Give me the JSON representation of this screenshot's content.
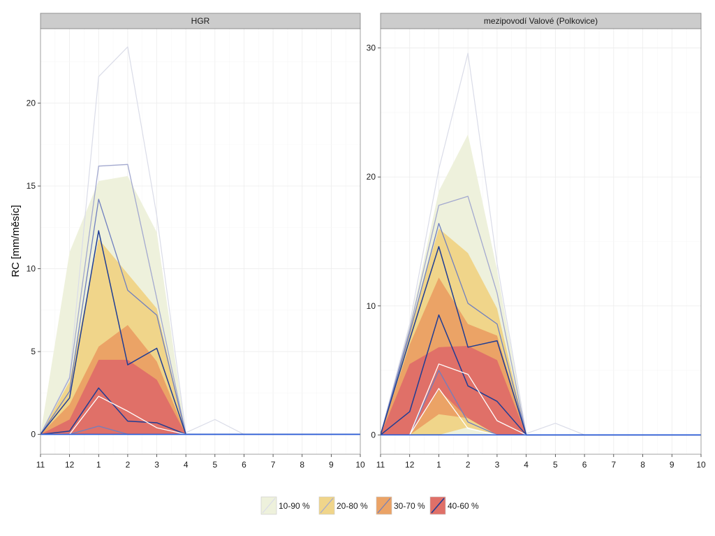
{
  "chart_data": {
    "type": "area",
    "ylabel": "RC [mm/měsíc]",
    "xlabel": "",
    "x_ticks": [
      "11",
      "12",
      "1",
      "2",
      "3",
      "4",
      "5",
      "6",
      "7",
      "8",
      "9",
      "10"
    ],
    "colors": {
      "band_10_90": "#eef1dc",
      "band_20_80": "#f0d58a",
      "band_30_70": "#eba366",
      "band_40_60": "#e07068",
      "line_10_90": "#dadce8",
      "line_20_80": "#a3a9cf",
      "line_30_70": "#6f7fbf",
      "line_40_60": "#1f3d94",
      "median": "#2a5bd7"
    },
    "legend": [
      {
        "label": "10-90 %",
        "fill": "#eef1dc",
        "line": "#dadce8"
      },
      {
        "label": "20-80 %",
        "fill": "#f0d58a",
        "line": "#a3a9cf"
      },
      {
        "label": "30-70 %",
        "fill": "#eba366",
        "line": "#6f7fbf"
      },
      {
        "label": "40-60 %",
        "fill": "#e07068",
        "line": "#1f3d94"
      }
    ],
    "panels": [
      {
        "title": "HGR",
        "ylim": [
          -1.2,
          24.5
        ],
        "yticks": [
          0,
          5,
          10,
          15,
          20
        ],
        "bands": [
          {
            "name": "10-90 %",
            "lower": [
              0,
              0,
              0,
              0,
              0,
              0,
              0,
              0,
              0,
              0,
              0,
              0
            ],
            "upper": [
              0,
              11,
              15.3,
              15.6,
              12.2,
              0,
              0,
              0,
              0,
              0,
              0,
              0
            ]
          },
          {
            "name": "20-80 %",
            "lower": [
              0,
              0,
              0,
              0,
              0,
              0,
              0,
              0,
              0,
              0,
              0,
              0
            ],
            "upper": [
              0,
              3.2,
              11.8,
              9.7,
              7.6,
              0,
              0,
              0,
              0,
              0,
              0,
              0
            ]
          },
          {
            "name": "30-70 %",
            "lower": [
              0,
              0,
              0,
              0,
              0,
              0,
              0,
              0,
              0,
              0,
              0,
              0
            ],
            "upper": [
              0,
              1.8,
              5.3,
              6.6,
              4.4,
              0,
              0,
              0,
              0,
              0,
              0,
              0
            ]
          },
          {
            "name": "40-60 %",
            "lower": [
              0,
              0,
              0,
              0,
              0,
              0,
              0,
              0,
              0,
              0,
              0,
              0
            ],
            "upper": [
              0,
              0.9,
              4.5,
              4.5,
              3.3,
              0,
              0,
              0,
              0,
              0,
              0,
              0
            ]
          }
        ],
        "lines": [
          {
            "band": "10-90 %",
            "values": [
              0,
              3.5,
              21.6,
              23.4,
              13.2,
              0.1,
              0.9,
              0,
              0,
              0,
              0,
              0
            ]
          },
          {
            "band": "20-80 %",
            "values": [
              0,
              3.4,
              16.2,
              16.3,
              8.2,
              0,
              0,
              0,
              0,
              0,
              0,
              0
            ]
          },
          {
            "band": "30-70 %",
            "values": [
              0,
              2.6,
              14.2,
              8.7,
              7.2,
              0,
              0,
              0,
              0,
              0,
              0,
              0
            ]
          },
          {
            "band": "40-60 %",
            "values": [
              0,
              2.2,
              12.3,
              4.2,
              5.2,
              0,
              0,
              0,
              0,
              0,
              0,
              0
            ]
          },
          {
            "band": "40-60 %",
            "values": [
              0,
              0.2,
              2.8,
              0.8,
              0.7,
              0,
              0,
              0,
              0,
              0,
              0,
              0
            ]
          },
          {
            "band": "30-70 %",
            "values": [
              0,
              0,
              0.5,
              0,
              0,
              0,
              0,
              0,
              0,
              0,
              0,
              0
            ]
          },
          {
            "band": "white",
            "values": [
              0,
              0,
              2.3,
              1.4,
              0.4,
              0,
              0,
              0,
              0,
              0,
              0,
              0
            ]
          }
        ]
      },
      {
        "title": "mezipovodí Valové (Polkovice)",
        "ylim": [
          -1.5,
          31.5
        ],
        "yticks": [
          0,
          10,
          20,
          30
        ],
        "bands": [
          {
            "name": "10-90 %",
            "lower": [
              0,
              0,
              0,
              0,
              0,
              0,
              0,
              0,
              0,
              0,
              0,
              0
            ],
            "upper": [
              0,
              8.5,
              18.9,
              23.3,
              12.8,
              0,
              0,
              0,
              0,
              0,
              0,
              0
            ]
          },
          {
            "name": "20-80 %",
            "lower": [
              0,
              0,
              0,
              0.6,
              0,
              0,
              0,
              0,
              0,
              0,
              0,
              0
            ],
            "upper": [
              0,
              8.2,
              16.0,
              14.1,
              9.8,
              0,
              0,
              0,
              0,
              0,
              0,
              0
            ]
          },
          {
            "name": "30-70 %",
            "lower": [
              0,
              0,
              1.6,
              1.3,
              0,
              0,
              0,
              0,
              0,
              0,
              0,
              0
            ],
            "upper": [
              0,
              7.0,
              12.2,
              8.6,
              7.7,
              0,
              0,
              0,
              0,
              0,
              0,
              0
            ]
          },
          {
            "name": "40-60 %",
            "lower": [
              0,
              0,
              3.5,
              1.3,
              0,
              0,
              0,
              0,
              0,
              0,
              0,
              0
            ],
            "upper": [
              0,
              5.5,
              6.8,
              6.9,
              5.8,
              0,
              0,
              0,
              0,
              0,
              0,
              0
            ]
          }
        ],
        "lines": [
          {
            "band": "10-90 %",
            "values": [
              0,
              8.6,
              20.6,
              29.6,
              13.3,
              0.1,
              0.9,
              0,
              0,
              0,
              0,
              0
            ]
          },
          {
            "band": "20-80 %",
            "values": [
              0,
              8.2,
              17.8,
              18.5,
              11.0,
              0,
              0,
              0,
              0,
              0,
              0,
              0
            ]
          },
          {
            "band": "30-70 %",
            "values": [
              0,
              7.9,
              16.4,
              10.2,
              8.6,
              0,
              0,
              0,
              0,
              0,
              0,
              0
            ]
          },
          {
            "band": "40-60 %",
            "values": [
              0,
              7.4,
              14.6,
              6.8,
              7.3,
              0,
              0,
              0,
              0,
              0,
              0,
              0
            ]
          },
          {
            "band": "40-60 %",
            "values": [
              0,
              1.8,
              9.3,
              3.8,
              2.6,
              0,
              0,
              0,
              0,
              0,
              0,
              0
            ]
          },
          {
            "band": "30-70 %",
            "values": [
              0,
              0,
              5.0,
              1.0,
              0,
              0,
              0,
              0,
              0,
              0,
              0,
              0
            ]
          },
          {
            "band": "white",
            "values": [
              0,
              0,
              5.5,
              4.7,
              1.1,
              0,
              0,
              0,
              0,
              0,
              0,
              0
            ]
          },
          {
            "band": "white",
            "values": [
              0,
              0,
              3.6,
              0.5,
              0,
              0,
              0,
              0,
              0,
              0,
              0,
              0
            ]
          }
        ]
      }
    ]
  }
}
